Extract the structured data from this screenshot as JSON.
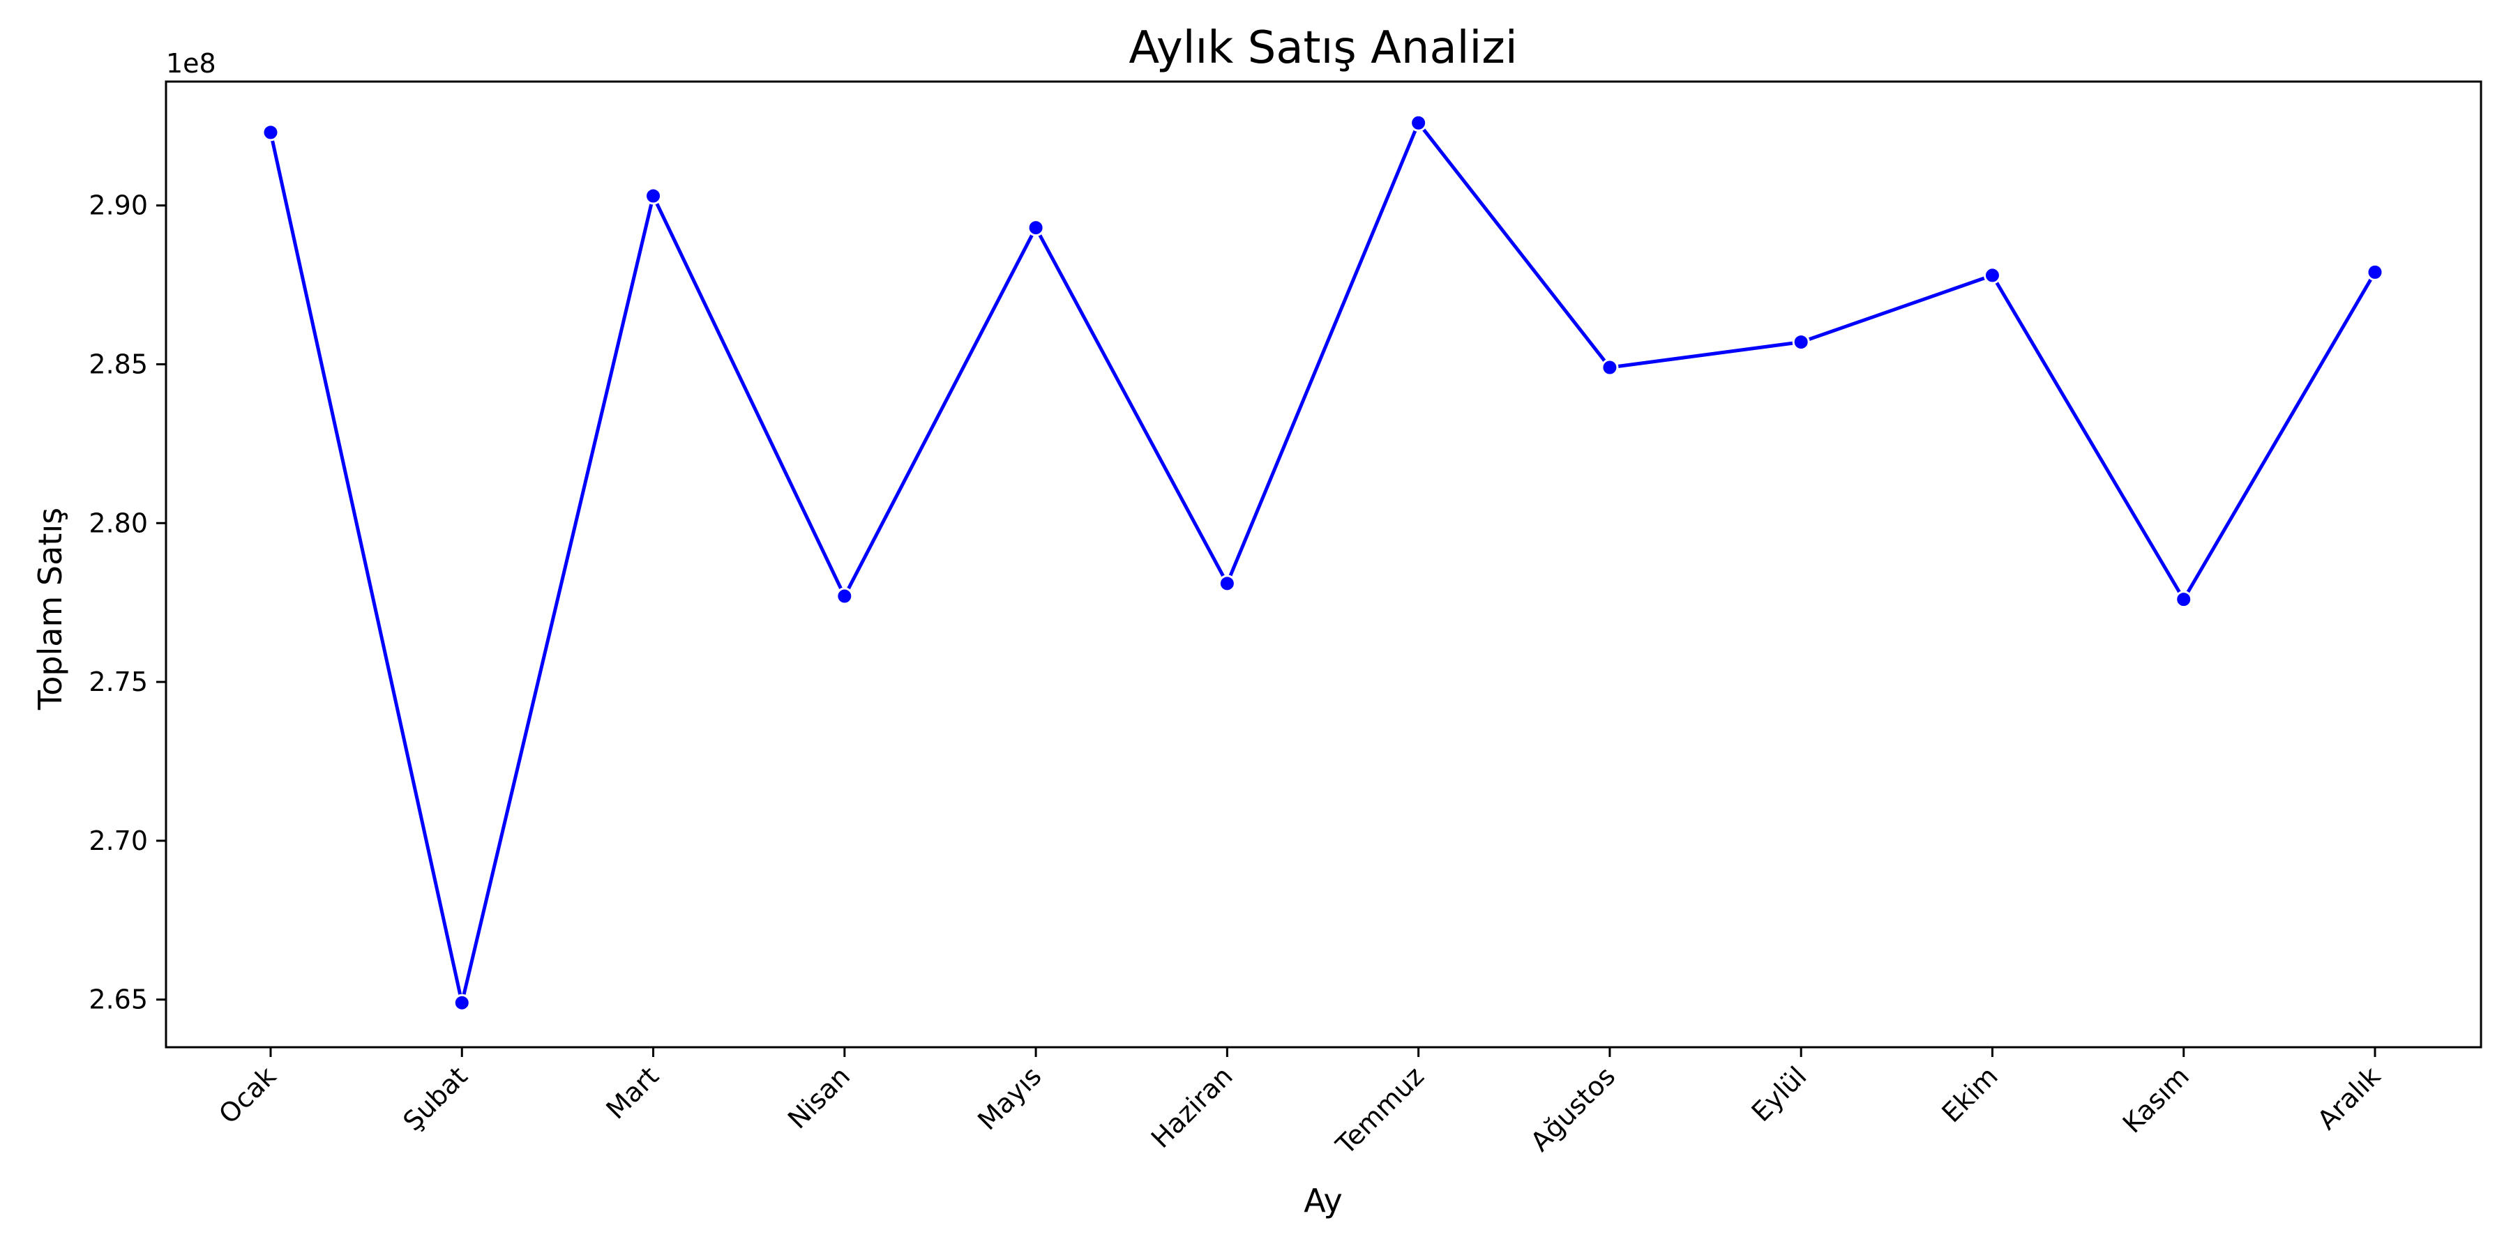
{
  "chart_data": {
    "type": "line",
    "title": "Aylık Satış Analizi",
    "xlabel": "Ay",
    "ylabel": "Toplam Satış",
    "y_offset_label": "1e8",
    "categories": [
      "Ocak",
      "Şubat",
      "Mart",
      "Nisan",
      "Mayıs",
      "Haziran",
      "Temmuz",
      "Ağustos",
      "Eylül",
      "Ekim",
      "Kasım",
      "Aralık"
    ],
    "series": [
      {
        "values": [
          2.923,
          2.649,
          2.903,
          2.777,
          2.893,
          2.781,
          2.926,
          2.849,
          2.857,
          2.878,
          2.776,
          2.879
        ]
      }
    ],
    "ylim": [
      2.635,
      2.939
    ],
    "yticks": [
      "2.65",
      "2.70",
      "2.75",
      "2.80",
      "2.85",
      "2.90"
    ],
    "ytick_values": [
      2.65,
      2.7,
      2.75,
      2.8,
      2.85,
      2.9
    ],
    "grid": false,
    "line_color": "#0000ff",
    "marker_color": "#0000ff"
  }
}
